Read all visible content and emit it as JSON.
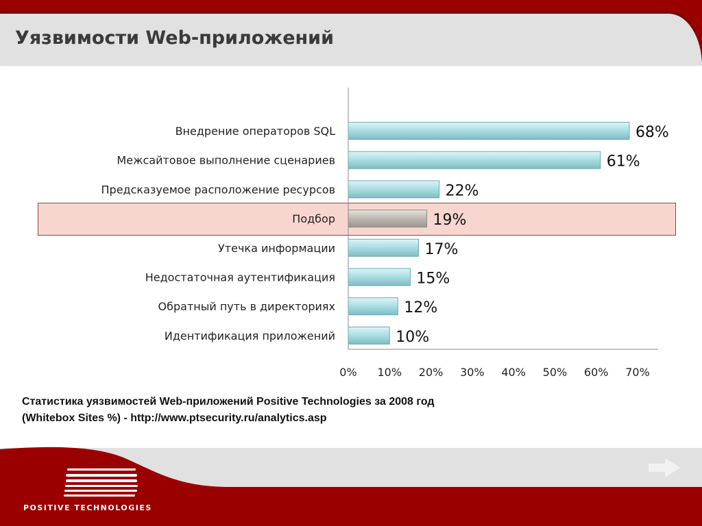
{
  "header": {
    "title": "Уязвимости Web-приложений"
  },
  "chart_data": {
    "type": "bar",
    "orientation": "horizontal",
    "categories": [
      "Внедрение операторов SQL",
      "Межсайтовое выполнение сценариев",
      "Предсказуемое расположение ресурсов",
      "Подбор",
      "Утечка информации",
      "Недостаточная аутентификация",
      "Обратный путь в директориях",
      "Идентификация приложений"
    ],
    "values": [
      68,
      61,
      22,
      19,
      17,
      15,
      12,
      10
    ],
    "value_labels": [
      "68%",
      "61%",
      "22%",
      "19%",
      "17%",
      "15%",
      "12%",
      "10%"
    ],
    "highlighted_category": "Подбор",
    "xlim": [
      0,
      70
    ],
    "xticks": [
      "0%",
      "10%",
      "20%",
      "30%",
      "40%",
      "50%",
      "60%",
      "70%"
    ],
    "colors": {
      "bar": "#a8dde3",
      "highlight_bar": "#bdb8b0",
      "highlight_band": "#f8d6d0"
    }
  },
  "caption": {
    "line1": "Статистика уязвимостей Web-приложений Positive Technologies за 2008 год",
    "line2": "(Whitebox Sites %) - http://www.ptsecurity.ru/analytics.asp"
  },
  "footer": {
    "logo_text": "POSITIVE TECHNOLOGIES"
  },
  "nav": {
    "next_icon": "arrow-right-icon"
  }
}
